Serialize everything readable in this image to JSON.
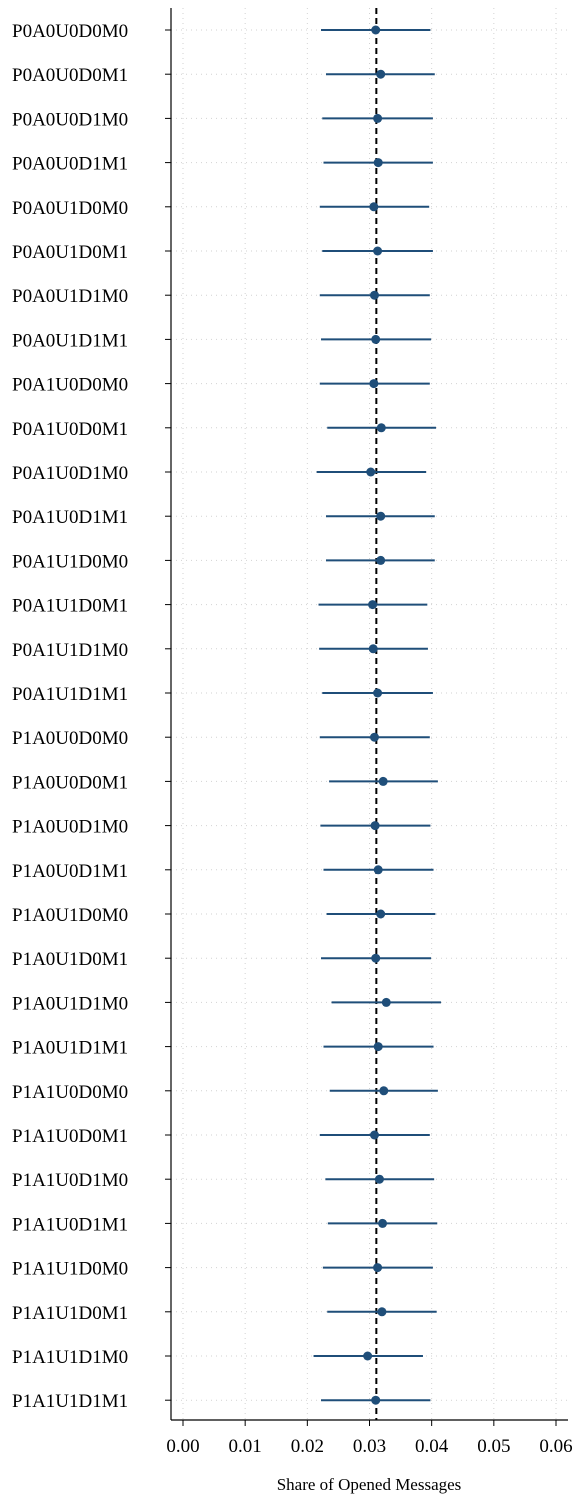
{
  "chart_data": {
    "type": "scatter",
    "orientation": "horizontal",
    "error_bars": true,
    "title": "",
    "xlabel": "Share of Opened Messages",
    "ylabel": "",
    "xlim": [
      0,
      0.06
    ],
    "xticks": [
      0.0,
      0.01,
      0.02,
      0.03,
      0.04,
      0.05,
      0.06
    ],
    "xtick_labels": [
      "0.00",
      "0.01",
      "0.02",
      "0.03",
      "0.04",
      "0.05",
      "0.06"
    ],
    "grid": true,
    "reference_line": {
      "x": 0.0311,
      "style": "dashed"
    },
    "colors": {
      "series": "#1f4e79",
      "reference": "#000000"
    },
    "categories": [
      "P0A0U0D0M0",
      "P0A0U0D0M1",
      "P0A0U0D1M0",
      "P0A0U0D1M1",
      "P0A0U1D0M0",
      "P0A0U1D0M1",
      "P0A0U1D1M0",
      "P0A0U1D1M1",
      "P0A1U0D0M0",
      "P0A1U0D0M1",
      "P0A1U0D1M0",
      "P0A1U0D1M1",
      "P0A1U1D0M0",
      "P0A1U1D0M1",
      "P0A1U1D1M0",
      "P0A1U1D1M1",
      "P1A0U0D0M0",
      "P1A0U0D0M1",
      "P1A0U0D1M0",
      "P1A0U0D1M1",
      "P1A0U1D0M0",
      "P1A0U1D0M1",
      "P1A0U1D1M0",
      "P1A0U1D1M1",
      "P1A1U0D0M0",
      "P1A1U0D0M1",
      "P1A1U0D1M0",
      "P1A1U0D1M1",
      "P1A1U1D0M0",
      "P1A1U1D0M1",
      "P1A1U1D1M0",
      "P1A1U1D1M1"
    ],
    "values": [
      0.031,
      0.0318,
      0.0313,
      0.0314,
      0.0307,
      0.0313,
      0.0308,
      0.031,
      0.0307,
      0.0319,
      0.0302,
      0.0318,
      0.0318,
      0.0305,
      0.0306,
      0.0313,
      0.0308,
      0.0322,
      0.0309,
      0.0314,
      0.0318,
      0.031,
      0.0327,
      0.0314,
      0.0323,
      0.0308,
      0.0316,
      0.0321,
      0.0313,
      0.032,
      0.0297,
      0.031
    ],
    "ci_low": [
      0.0222,
      0.023,
      0.0224,
      0.0226,
      0.022,
      0.0224,
      0.022,
      0.0222,
      0.022,
      0.0232,
      0.0215,
      0.023,
      0.023,
      0.0218,
      0.0219,
      0.0224,
      0.022,
      0.0235,
      0.0221,
      0.0226,
      0.0231,
      0.0222,
      0.0239,
      0.0226,
      0.0236,
      0.022,
      0.0229,
      0.0233,
      0.0225,
      0.0232,
      0.021,
      0.0222
    ],
    "ci_high": [
      0.0398,
      0.0405,
      0.0402,
      0.0402,
      0.0396,
      0.0402,
      0.0397,
      0.0399,
      0.0397,
      0.0407,
      0.0391,
      0.0405,
      0.0405,
      0.0393,
      0.0394,
      0.0402,
      0.0397,
      0.041,
      0.0398,
      0.0403,
      0.0406,
      0.0399,
      0.0415,
      0.0403,
      0.041,
      0.0397,
      0.0404,
      0.0409,
      0.0402,
      0.0408,
      0.0386,
      0.0398
    ]
  }
}
